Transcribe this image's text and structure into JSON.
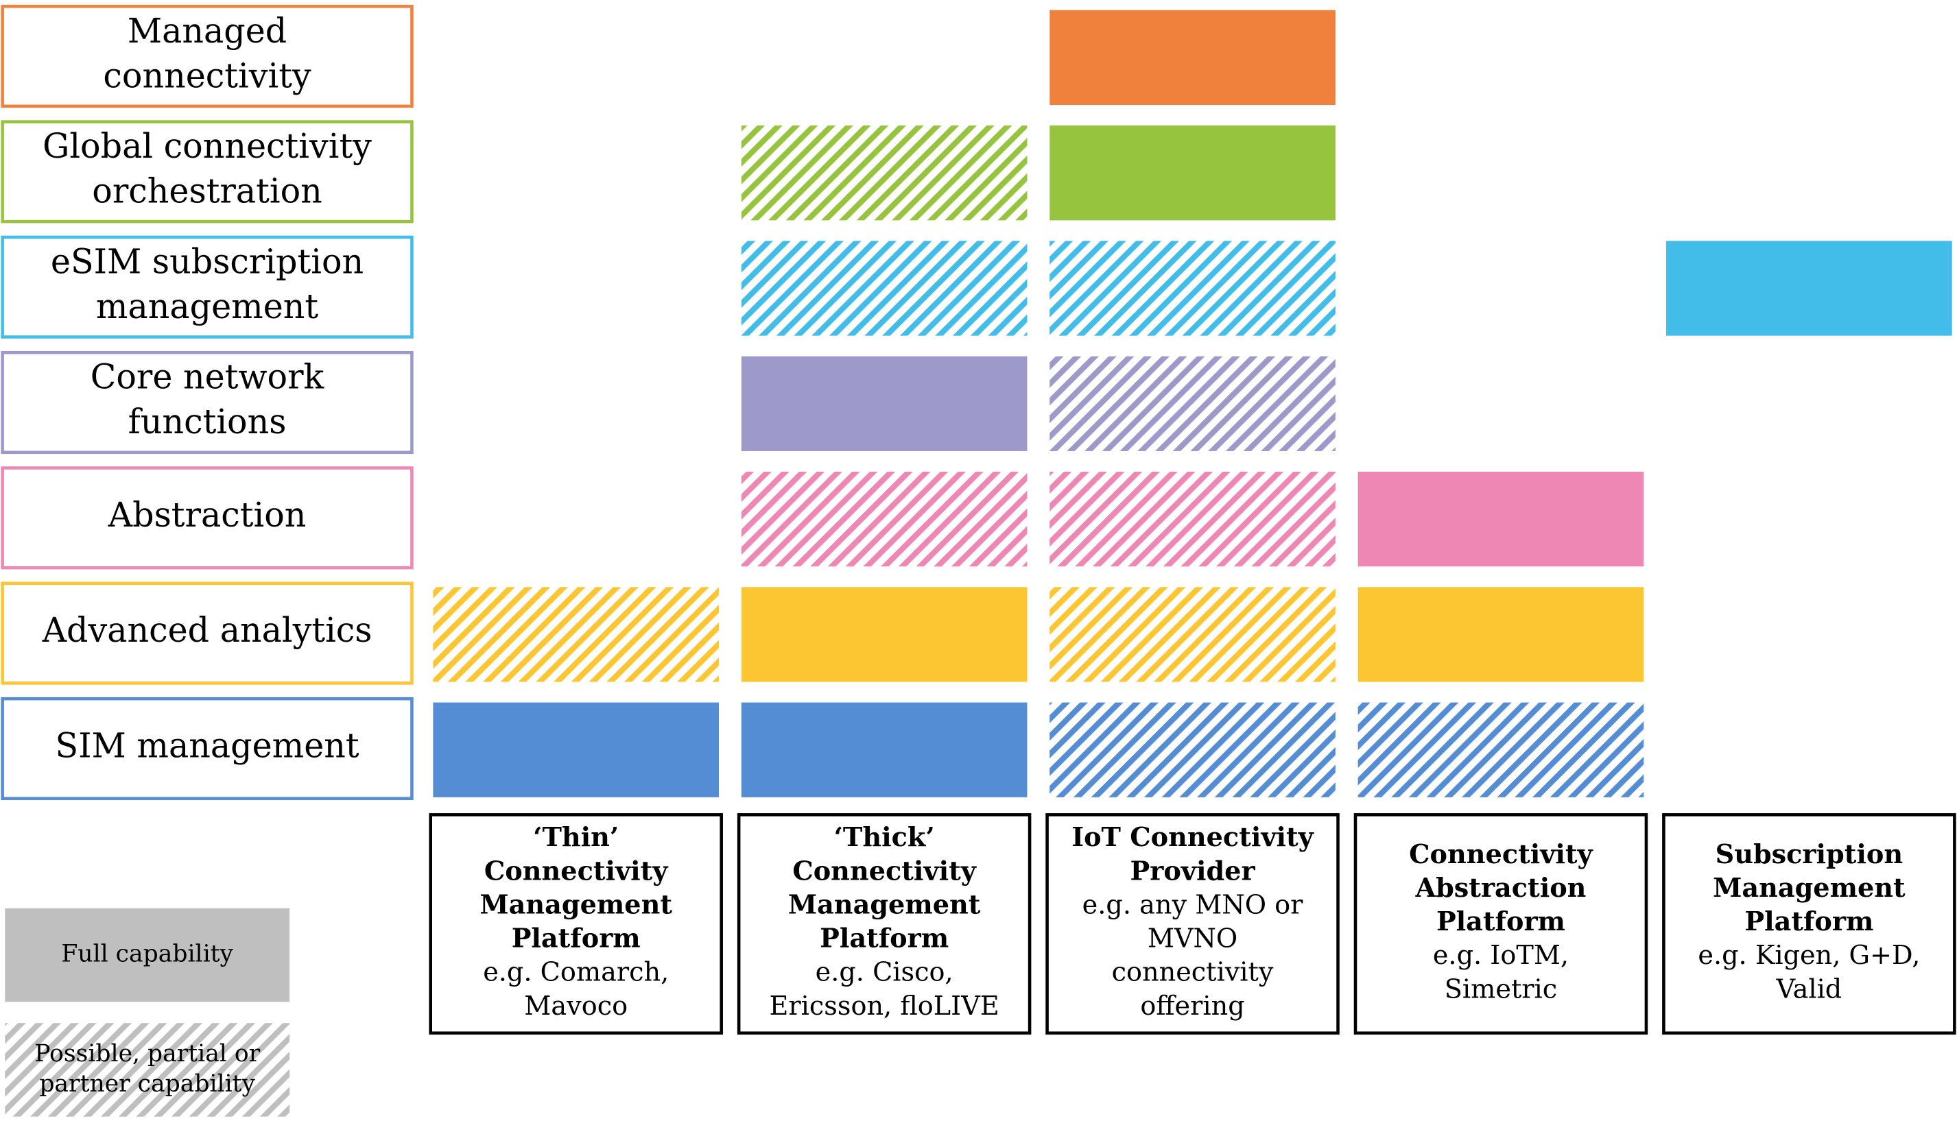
{
  "rows": [
    {
      "label": [
        "Managed",
        "connectivity"
      ],
      "color": "#f0813c"
    },
    {
      "label": [
        "Global connectivity",
        "orchestration"
      ],
      "color": "#97c43e"
    },
    {
      "label": [
        "eSIM subscription",
        "management"
      ],
      "color": "#42bdea"
    },
    {
      "label": [
        "Core network",
        "functions"
      ],
      "color": "#9d9acb"
    },
    {
      "label": [
        "Abstraction"
      ],
      "color": "#ee87b4"
    },
    {
      "label": [
        "Advanced analytics"
      ],
      "color": "#fcc633"
    },
    {
      "label": [
        "SIM management"
      ],
      "color": "#548dd4"
    }
  ],
  "columns": [
    {
      "title": [
        "‘Thin’",
        "Connectivity",
        "Management",
        "Platform"
      ],
      "examples": [
        "e.g. Comarch,",
        "Mavoco"
      ]
    },
    {
      "title": [
        "‘Thick’",
        "Connectivity",
        "Management",
        "Platform"
      ],
      "examples": [
        "e.g. Cisco,",
        "Ericsson, floLIVE"
      ]
    },
    {
      "title": [
        "IoT Connectivity",
        "Provider"
      ],
      "examples": [
        "e.g. any MNO or",
        "MVNO",
        "connectivity",
        "offering"
      ]
    },
    {
      "title": [
        "Connectivity",
        "Abstraction",
        "Platform"
      ],
      "examples": [
        "e.g. IoTM,",
        "Simetric"
      ]
    },
    {
      "title": [
        "Subscription",
        "Management",
        "Platform"
      ],
      "examples": [
        "e.g. Kigen, G+D,",
        "Valid"
      ]
    }
  ],
  "matrix": [
    [
      "none",
      "none",
      "full",
      "none",
      "none"
    ],
    [
      "none",
      "partial",
      "full",
      "none",
      "none"
    ],
    [
      "none",
      "partial",
      "partial",
      "none",
      "full"
    ],
    [
      "none",
      "full",
      "partial",
      "none",
      "none"
    ],
    [
      "none",
      "partial",
      "partial",
      "full",
      "none"
    ],
    [
      "partial",
      "full",
      "partial",
      "full",
      "none"
    ],
    [
      "full",
      "full",
      "partial",
      "partial",
      "none"
    ]
  ],
  "legend": {
    "color": "#bfbfbf",
    "full": [
      "Full capability"
    ],
    "partial": [
      "Possible, partial or",
      "partner capability"
    ]
  }
}
